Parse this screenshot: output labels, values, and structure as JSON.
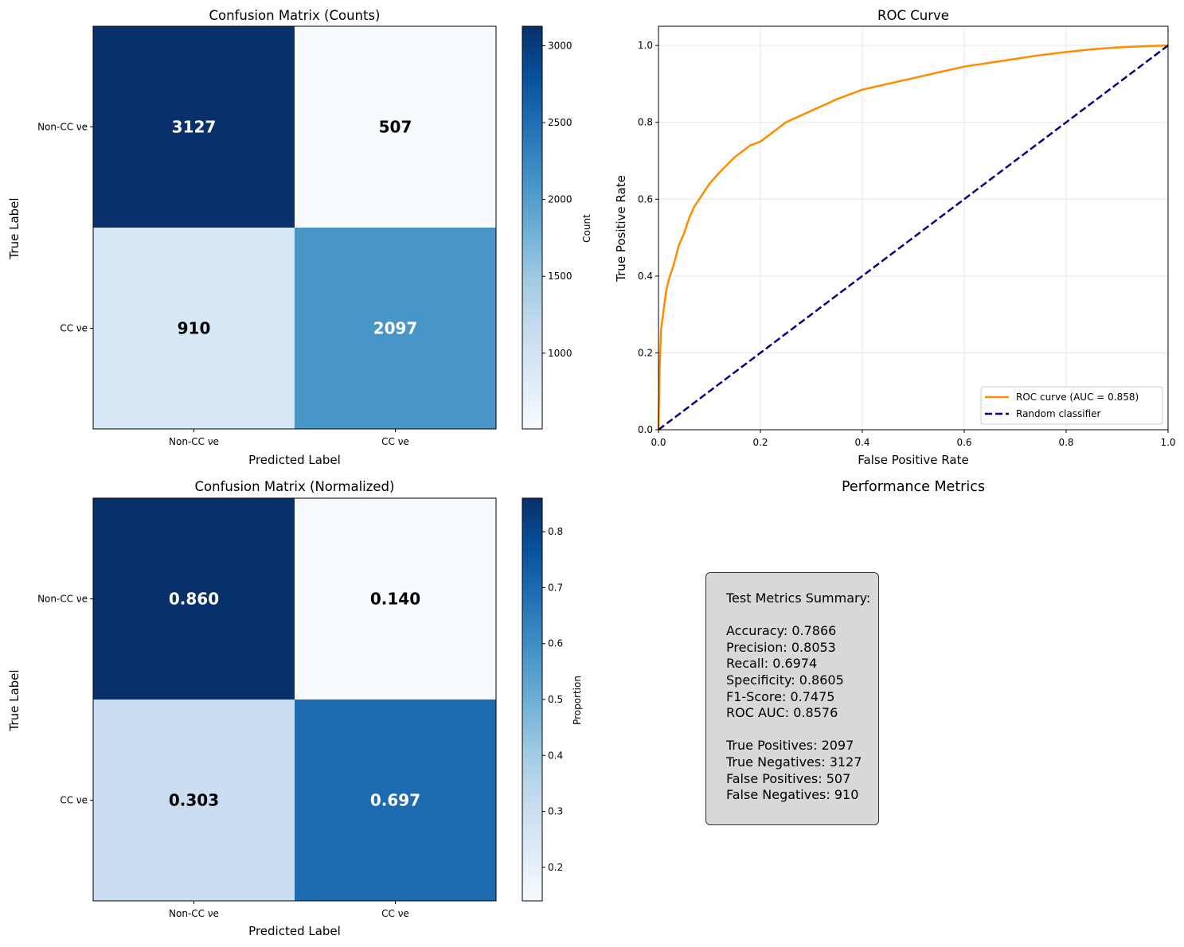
{
  "chart_data": [
    {
      "type": "heatmap",
      "title": "Confusion Matrix (Counts)",
      "xlabel": "Predicted Label",
      "ylabel": "True Label",
      "x_categories": [
        "Non-CC νe",
        "CC νe"
      ],
      "y_categories": [
        "Non-CC νe",
        "CC νe"
      ],
      "values": [
        [
          3127,
          507
        ],
        [
          910,
          2097
        ]
      ],
      "cell_labels": [
        [
          "3127",
          "507"
        ],
        [
          "910",
          "2097"
        ]
      ],
      "colormap": "Blues",
      "vmin": 507,
      "vmax": 3127,
      "colorbar": {
        "label": "Count",
        "ticks": [
          1000,
          1500,
          2000,
          2500,
          3000
        ],
        "tick_labels": [
          "1000",
          "1500",
          "2000",
          "2500",
          "3000"
        ]
      }
    },
    {
      "type": "line",
      "title": "ROC Curve",
      "xlabel": "False Positive Rate",
      "ylabel": "True Positive Rate",
      "xlim": [
        0.0,
        1.0
      ],
      "ylim": [
        0.0,
        1.05
      ],
      "x_ticks": [
        0.0,
        0.2,
        0.4,
        0.6,
        0.8,
        1.0
      ],
      "x_tick_labels": [
        "0.0",
        "0.2",
        "0.4",
        "0.6",
        "0.8",
        "1.0"
      ],
      "y_ticks": [
        0.0,
        0.2,
        0.4,
        0.6,
        0.8,
        1.0
      ],
      "y_tick_labels": [
        "0.0",
        "0.2",
        "0.4",
        "0.6",
        "0.8",
        "1.0"
      ],
      "grid": true,
      "legend_position": "lower right",
      "series": [
        {
          "name": "ROC curve (AUC = 0.858)",
          "color": "#ff8c00",
          "style": "solid",
          "x": [
            0,
            0.002,
            0.005,
            0.01,
            0.015,
            0.02,
            0.03,
            0.04,
            0.05,
            0.06,
            0.07,
            0.08,
            0.1,
            0.12,
            0.15,
            0.18,
            0.2,
            0.22,
            0.25,
            0.3,
            0.35,
            0.4,
            0.45,
            0.5,
            0.55,
            0.6,
            0.65,
            0.7,
            0.75,
            0.8,
            0.85,
            0.9,
            0.95,
            1.0
          ],
          "y": [
            0,
            0.15,
            0.26,
            0.31,
            0.36,
            0.39,
            0.43,
            0.48,
            0.51,
            0.55,
            0.58,
            0.6,
            0.64,
            0.67,
            0.71,
            0.74,
            0.75,
            0.77,
            0.8,
            0.83,
            0.86,
            0.885,
            0.9,
            0.915,
            0.93,
            0.945,
            0.955,
            0.965,
            0.975,
            0.983,
            0.99,
            0.995,
            0.998,
            1.0
          ]
        },
        {
          "name": "Random classifier",
          "color": "#000080",
          "style": "dashed",
          "x": [
            0,
            1
          ],
          "y": [
            0,
            1
          ]
        }
      ]
    },
    {
      "type": "heatmap",
      "title": "Confusion Matrix (Normalized)",
      "xlabel": "Predicted Label",
      "ylabel": "True Label",
      "x_categories": [
        "Non-CC νe",
        "CC νe"
      ],
      "y_categories": [
        "Non-CC νe",
        "CC νe"
      ],
      "values": [
        [
          0.86,
          0.14
        ],
        [
          0.303,
          0.697
        ]
      ],
      "cell_labels": [
        [
          "0.860",
          "0.140"
        ],
        [
          "0.303",
          "0.697"
        ]
      ],
      "colormap": "Blues",
      "vmin": 0.14,
      "vmax": 0.86,
      "colorbar": {
        "label": "Proportion",
        "ticks": [
          0.2,
          0.3,
          0.4,
          0.5,
          0.6,
          0.7,
          0.8
        ],
        "tick_labels": [
          "0.2",
          "0.3",
          "0.4",
          "0.5",
          "0.6",
          "0.7",
          "0.8"
        ]
      }
    }
  ],
  "metrics_panel": {
    "title": "Performance Metrics",
    "summary_heading": "Test Metrics Summary:",
    "scores": [
      "Accuracy: 0.7866",
      "Precision: 0.8053",
      "Recall: 0.6974",
      "Specificity: 0.8605",
      "F1-Score: 0.7475",
      "ROC AUC: 0.8576"
    ],
    "counts": [
      "True Positives: 2097",
      "True Negatives: 3127",
      "False Positives: 507",
      "False Negatives: 910"
    ],
    "box_color": "#d8d8d8"
  }
}
